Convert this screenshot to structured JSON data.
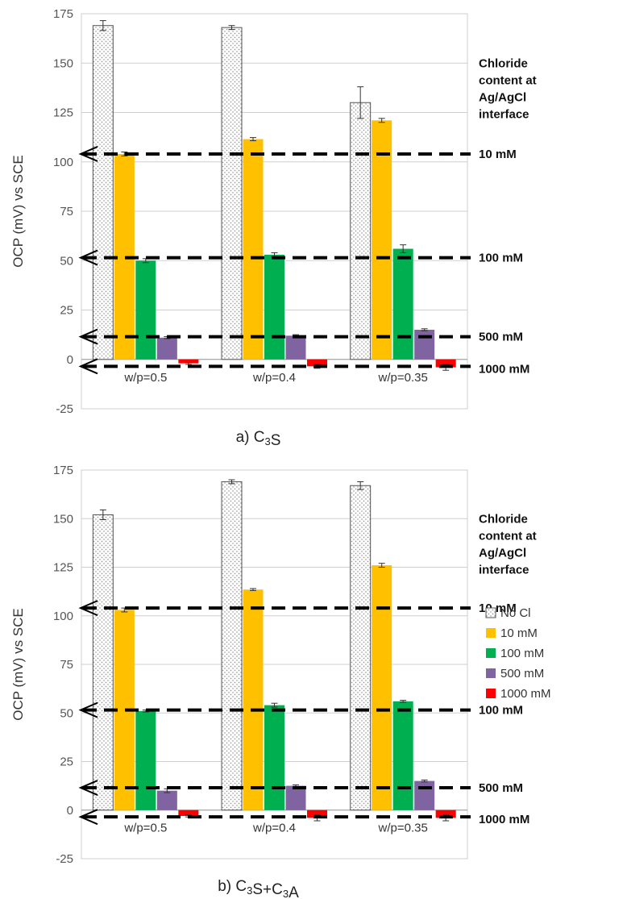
{
  "legend": [
    {
      "label": "No Cl",
      "color": "#f2f2f2",
      "pattern": "dots"
    },
    {
      "label": "10 mM",
      "color": "#ffc000"
    },
    {
      "label": "100 mM",
      "color": "#00b050"
    },
    {
      "label": "500 mM",
      "color": "#8064a2"
    },
    {
      "label": "1000 mM",
      "color": "#ff0000"
    }
  ],
  "chart_data": [
    {
      "type": "bar",
      "caption": {
        "prefix": "a) C",
        "sub1": "3",
        "mid": "S",
        "sub2": "",
        "suffix": ""
      },
      "ylabel": "OCP (mV) vs SCE",
      "ylim": [
        -25,
        175
      ],
      "yticks": [
        -25,
        0,
        25,
        50,
        75,
        100,
        125,
        150,
        175
      ],
      "grid": true,
      "categories": [
        "w/p=0.5",
        "w/p=0.4",
        "w/p=0.35"
      ],
      "series": [
        {
          "name": "No Cl",
          "values": [
            169,
            168,
            130
          ],
          "errors": [
            2.5,
            1,
            8
          ]
        },
        {
          "name": "10 mM",
          "values": [
            104,
            111.5,
            121
          ],
          "errors": [
            1,
            0.8,
            1
          ]
        },
        {
          "name": "100 mM",
          "values": [
            50,
            53,
            56
          ],
          "errors": [
            1,
            1,
            2
          ]
        },
        {
          "name": "500 mM",
          "values": [
            11,
            12,
            15
          ],
          "errors": [
            0.5,
            0.5,
            0.5
          ]
        },
        {
          "name": "1000 mM",
          "values": [
            -2,
            -3.5,
            -4
          ],
          "errors": [
            0.5,
            1,
            1.5
          ]
        }
      ],
      "reference_title": [
        "Chloride",
        "content at",
        "Ag/AgCl",
        "interface"
      ],
      "reference_lines": [
        {
          "label": "10 mM",
          "value": 104
        },
        {
          "label": "100 mM",
          "value": 51.5
        },
        {
          "label": "500 mM",
          "value": 11.5
        },
        {
          "label": "1000 mM",
          "value": -3.5
        }
      ]
    },
    {
      "type": "bar",
      "caption": {
        "prefix": "b) C",
        "sub1": "3",
        "mid": "S+C",
        "sub2": "3",
        "suffix": "A"
      },
      "ylabel": "OCP (mV) vs SCE",
      "ylim": [
        -25,
        175
      ],
      "yticks": [
        -25,
        0,
        25,
        50,
        75,
        100,
        125,
        150,
        175
      ],
      "grid": true,
      "legend_position": "right",
      "categories": [
        "w/p=0.5",
        "w/p=0.4",
        "w/p=0.35"
      ],
      "series": [
        {
          "name": "No Cl",
          "values": [
            152,
            169,
            167
          ],
          "errors": [
            2.5,
            1,
            2
          ]
        },
        {
          "name": "10 mM",
          "values": [
            103,
            113.5,
            126
          ],
          "errors": [
            1,
            0.5,
            1
          ]
        },
        {
          "name": "100 mM",
          "values": [
            51,
            54,
            56
          ],
          "errors": [
            0.5,
            1,
            0.5
          ]
        },
        {
          "name": "500 mM",
          "values": [
            10,
            12.5,
            15
          ],
          "errors": [
            1,
            0.5,
            0.5
          ]
        },
        {
          "name": "1000 mM",
          "values": [
            -3,
            -4,
            -4
          ],
          "errors": [
            0.5,
            1.5,
            1.5
          ]
        }
      ],
      "reference_title": [
        "Chloride",
        "content at",
        "Ag/AgCl",
        "interface"
      ],
      "reference_lines": [
        {
          "label": "10 mM",
          "value": 104
        },
        {
          "label": "100 mM",
          "value": 51.5
        },
        {
          "label": "500 mM",
          "value": 11.5
        },
        {
          "label": "1000 mM",
          "value": -3.5
        }
      ]
    }
  ]
}
